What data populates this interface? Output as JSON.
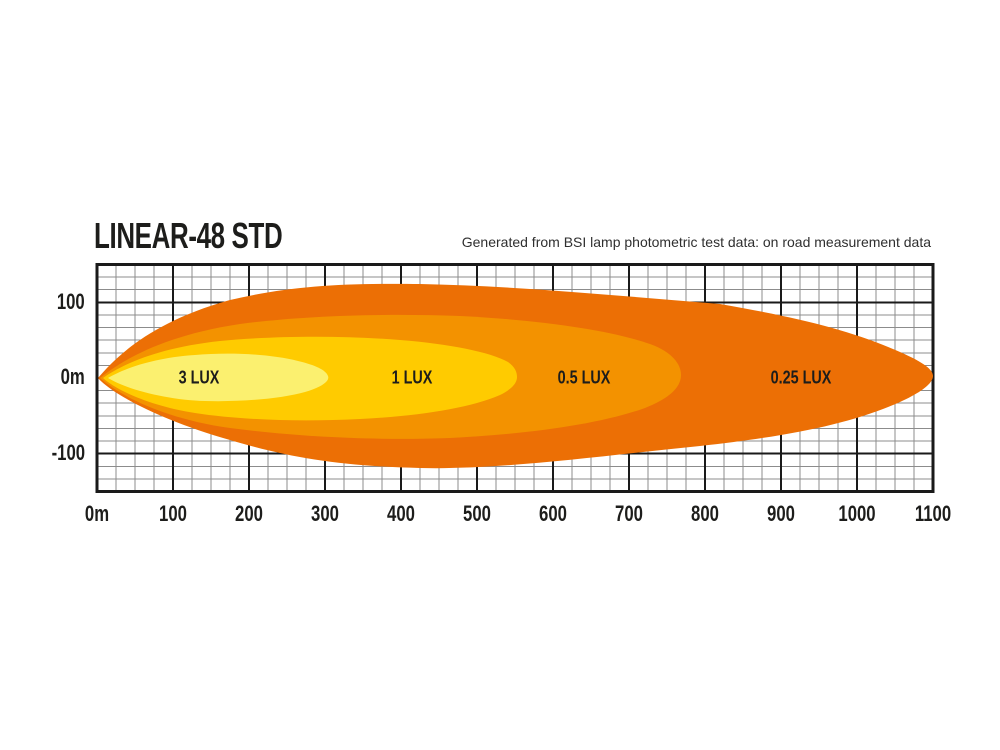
{
  "chart_data": {
    "type": "area",
    "title": "LINEAR-48 STD",
    "subtitle": "Generated from BSI lamp photometric test data: on road measurement data",
    "x_axis": {
      "unit": "m",
      "range": [
        0,
        1100
      ],
      "ticks": [
        "0m",
        "100",
        "200",
        "300",
        "400",
        "500",
        "600",
        "700",
        "800",
        "900",
        "1000",
        "1100"
      ]
    },
    "y_axis": {
      "unit": "m",
      "range": [
        -150,
        150
      ],
      "ticks": [
        "100",
        "0m",
        "-100"
      ]
    },
    "grid": "on",
    "legend_position": "inside",
    "contours": [
      {
        "label": "3 LUX",
        "lux": 3,
        "reach_m": 305,
        "max_spread_m": 63,
        "color": "#FBF06F"
      },
      {
        "label": "1 LUX",
        "lux": 1,
        "reach_m": 550,
        "max_spread_m": 115,
        "color": "#FFCB00"
      },
      {
        "label": "0.5 LUX",
        "lux": 0.5,
        "reach_m": 770,
        "max_spread_m": 163,
        "color": "#F39200"
      },
      {
        "label": "0.25 LUX",
        "lux": 0.25,
        "reach_m": 1100,
        "max_spread_m": 247,
        "color": "#EC6F05"
      }
    ]
  }
}
